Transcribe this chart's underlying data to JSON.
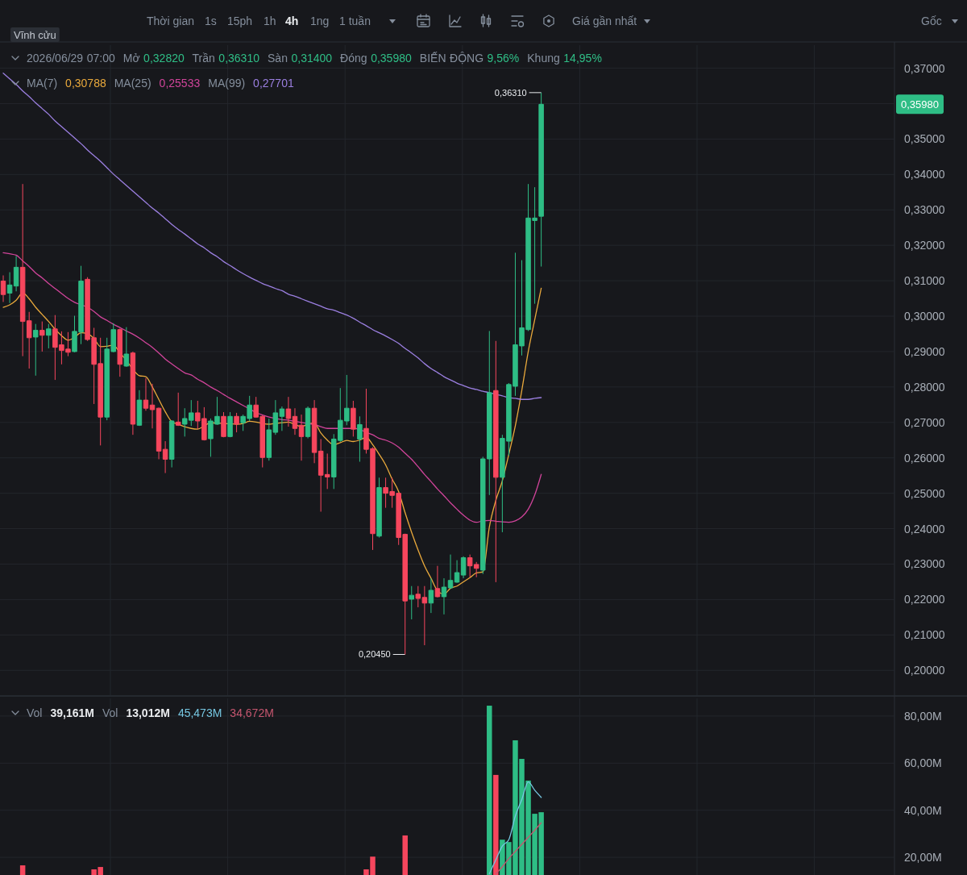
{
  "chart_data": [
    {
      "type": "candlestick",
      "title": "Vĩnh cửu",
      "subtitle": "2026/06/29 07:00 Mở 0,32820 Trần 0,36310 Sàn 0,31400 Đóng 0,35980 BIẾN ĐỘNG 9,56% Khung 14,95%",
      "categories": [
        null,
        null,
        null,
        null,
        null,
        null,
        null,
        null,
        null,
        null,
        null,
        null,
        null,
        null,
        null,
        null,
        null,
        null,
        null,
        null,
        null,
        null,
        null,
        null,
        null,
        null,
        null,
        null,
        null,
        null,
        null,
        null,
        null,
        null,
        null,
        null,
        null,
        null,
        null,
        null,
        null,
        null,
        null,
        null,
        null,
        null,
        null,
        null,
        null,
        null,
        null,
        null,
        null,
        null,
        null,
        null,
        null,
        null,
        null,
        null,
        null,
        null,
        null,
        null,
        null,
        null,
        null,
        null,
        null,
        null,
        null,
        null,
        null,
        null,
        null,
        null,
        null,
        null,
        null,
        null,
        null,
        null,
        null,
        null,
        null,
        null,
        null,
        null,
        null,
        null,
        null,
        null,
        null,
        null,
        null,
        null,
        null,
        null,
        null,
        null,
        null,
        null,
        null,
        null,
        null,
        null,
        null,
        null,
        null,
        null,
        null,
        null,
        null,
        null,
        null,
        null,
        null,
        null,
        null,
        null,
        null,
        null,
        null,
        null,
        null,
        null,
        null,
        null,
        null,
        null,
        null,
        null,
        null,
        null,
        null,
        null,
        null,
        null
      ],
      "ohlc": [
        [
          0.3099,
          0.3115,
          0.304,
          0.3061
        ],
        [
          0.3065,
          0.3124,
          0.3037,
          0.3088
        ],
        [
          0.3085,
          0.317,
          0.307,
          0.3138
        ],
        [
          0.3138,
          0.3373,
          0.2887,
          0.2985
        ],
        [
          0.2987,
          0.3012,
          0.2852,
          0.2939
        ],
        [
          0.2941,
          0.2978,
          0.2832,
          0.296
        ],
        [
          0.296,
          0.2985,
          0.29,
          0.2946
        ],
        [
          0.2946,
          0.2978,
          0.2909,
          0.2964
        ],
        [
          0.2964,
          0.3003,
          0.282,
          0.2912
        ],
        [
          0.2919,
          0.2957,
          0.2864,
          0.2903
        ],
        [
          0.2907,
          0.2955,
          0.2887,
          0.2898
        ],
        [
          0.29,
          0.3001,
          0.2898,
          0.2957
        ],
        [
          0.2955,
          0.3142,
          0.2921,
          0.3099
        ],
        [
          0.3104,
          0.311,
          0.293,
          0.2934
        ],
        [
          0.2939,
          0.2967,
          0.2752,
          0.2864
        ],
        [
          0.2866,
          0.2939,
          0.2635,
          0.2715
        ],
        [
          0.2715,
          0.2939,
          0.2706,
          0.2907
        ],
        [
          0.29,
          0.298,
          0.2898,
          0.2962
        ],
        [
          0.2962,
          0.2965,
          0.2829,
          0.2864
        ],
        [
          0.2859,
          0.2969,
          0.2857,
          0.2893
        ],
        [
          0.2896,
          0.29,
          0.2665,
          0.2695
        ],
        [
          0.2692,
          0.2791,
          0.269,
          0.2763
        ],
        [
          0.2763,
          0.2825,
          0.2733,
          0.274
        ],
        [
          0.2749,
          0.2809,
          0.2683,
          0.2736
        ],
        [
          0.274,
          0.2742,
          0.2596,
          0.2619
        ],
        [
          0.2624,
          0.2647,
          0.2557,
          0.2596
        ],
        [
          0.2596,
          0.2706,
          0.2573,
          0.2704
        ],
        [
          0.2701,
          0.2784,
          0.269,
          0.2692
        ],
        [
          0.2695,
          0.274,
          0.266,
          0.2711
        ],
        [
          0.2706,
          0.2763,
          0.269,
          0.2727
        ],
        [
          0.2727,
          0.2761,
          0.2681,
          0.2704
        ],
        [
          0.2711,
          0.2743,
          0.2649,
          0.2651
        ],
        [
          0.2654,
          0.2711,
          0.2603,
          0.2704
        ],
        [
          0.2695,
          0.2772,
          0.2693,
          0.2717
        ],
        [
          0.2717,
          0.2729,
          0.2658,
          0.266
        ],
        [
          0.266,
          0.2729,
          0.2658,
          0.2717
        ],
        [
          0.2717,
          0.2727,
          0.2672,
          0.2695
        ],
        [
          0.2699,
          0.2722,
          0.2676,
          0.2717
        ],
        [
          0.2711,
          0.2775,
          0.2704,
          0.2749
        ],
        [
          0.2749,
          0.2772,
          0.2713,
          0.2715
        ],
        [
          0.2717,
          0.272,
          0.2573,
          0.2601
        ],
        [
          0.2601,
          0.2711,
          0.2592,
          0.2679
        ],
        [
          0.2672,
          0.2763,
          0.2665,
          0.2727
        ],
        [
          0.2717,
          0.2745,
          0.2676,
          0.2738
        ],
        [
          0.2738,
          0.2772,
          0.2688,
          0.2711
        ],
        [
          0.2717,
          0.274,
          0.2665,
          0.2683
        ],
        [
          0.2692,
          0.2722,
          0.2592,
          0.266
        ],
        [
          0.266,
          0.2745,
          0.2655,
          0.274
        ],
        [
          0.274,
          0.2763,
          0.2585,
          0.2615
        ],
        [
          0.2619,
          0.2653,
          0.2448,
          0.2551
        ],
        [
          0.2553,
          0.2612,
          0.2512,
          0.2546
        ],
        [
          0.2546,
          0.2667,
          0.2512,
          0.2653
        ],
        [
          0.2649,
          0.2797,
          0.2645,
          0.2706
        ],
        [
          0.2704,
          0.2834,
          0.2692,
          0.274
        ],
        [
          0.274,
          0.2761,
          0.266,
          0.2681
        ],
        [
          0.2653,
          0.2717,
          0.2589,
          0.2694
        ],
        [
          0.2683,
          0.2795,
          0.2612,
          0.2624
        ],
        [
          0.2626,
          0.263,
          0.234,
          0.2386
        ],
        [
          0.2379,
          0.2544,
          0.2375,
          0.2516
        ],
        [
          0.2516,
          0.2544,
          0.2459,
          0.25
        ],
        [
          0.2505,
          0.2544,
          0.2459,
          0.2494
        ],
        [
          0.25,
          0.2502,
          0.2354,
          0.2375
        ],
        [
          0.2384,
          0.2386,
          0.2045,
          0.2196
        ],
        [
          0.2201,
          0.2238,
          0.2144,
          0.2212
        ],
        [
          0.2215,
          0.2238,
          0.2178,
          0.2203
        ],
        [
          0.2206,
          0.2238,
          0.2071,
          0.219
        ],
        [
          0.219,
          0.226,
          0.2162,
          0.2226
        ],
        [
          0.2231,
          0.2295,
          0.2206,
          0.2208
        ],
        [
          0.2208,
          0.226,
          0.2158,
          0.2235
        ],
        [
          0.2233,
          0.2327,
          0.223,
          0.2254
        ],
        [
          0.2249,
          0.2311,
          0.2247,
          0.2276
        ],
        [
          0.2269,
          0.2322,
          0.226,
          0.2318
        ],
        [
          0.2318,
          0.2327,
          0.2263,
          0.2295
        ],
        [
          0.2299,
          0.2306,
          0.2263,
          0.2288
        ],
        [
          0.2283,
          0.2603,
          0.2272,
          0.2597
        ],
        [
          0.2597,
          0.2958,
          0.2495,
          0.2784
        ],
        [
          0.279,
          0.293,
          0.2249,
          0.2545
        ],
        [
          0.2545,
          0.2665,
          0.239,
          0.2655
        ],
        [
          0.2647,
          0.2811,
          0.2606,
          0.2807
        ],
        [
          0.2802,
          0.3179,
          0.2775,
          0.2919
        ],
        [
          0.2916,
          0.3158,
          0.2889,
          0.2967
        ],
        [
          0.2962,
          0.3373,
          0.2958,
          0.3277
        ],
        [
          0.327,
          0.3364,
          0.3035,
          0.3277
        ],
        [
          0.3282,
          0.3631,
          0.314,
          0.3598
        ],
        null,
        null,
        null,
        null,
        null,
        null,
        null,
        null,
        null,
        null,
        null,
        null,
        null,
        null,
        null,
        null,
        null,
        null,
        null,
        null,
        null,
        null,
        null,
        null,
        null,
        null,
        null,
        null,
        null,
        null,
        null,
        null,
        null,
        null,
        null,
        null,
        null,
        null,
        null,
        null,
        null,
        null,
        null,
        null,
        null,
        null,
        null,
        null,
        null,
        null,
        null,
        null,
        null,
        null
      ],
      "colors": [
        "#f6465d",
        "#2ebd85",
        "#2ebd85",
        "#f6465d",
        "#f6465d",
        "#2ebd85",
        "#f6465d",
        "#2ebd85",
        "#f6465d",
        "#f6465d",
        "#f6465d",
        "#2ebd85",
        "#2ebd85",
        "#f6465d",
        "#f6465d",
        "#f6465d",
        "#2ebd85",
        "#2ebd85",
        "#f6465d",
        "#2ebd85",
        "#f6465d",
        "#2ebd85",
        "#f6465d",
        "#f6465d",
        "#f6465d",
        "#f6465d",
        "#2ebd85",
        "#f6465d",
        "#2ebd85",
        "#2ebd85",
        "#f6465d",
        "#f6465d",
        "#2ebd85",
        "#2ebd85",
        "#f6465d",
        "#2ebd85",
        "#f6465d",
        "#2ebd85",
        "#2ebd85",
        "#f6465d",
        "#f6465d",
        "#2ebd85",
        "#2ebd85",
        "#2ebd85",
        "#f6465d",
        "#f6465d",
        "#f6465d",
        "#2ebd85",
        "#f6465d",
        "#f6465d",
        "#f6465d",
        "#2ebd85",
        "#2ebd85",
        "#2ebd85",
        "#f6465d",
        "#2ebd85",
        "#f6465d",
        "#f6465d",
        "#2ebd85",
        "#f6465d",
        "#f6465d",
        "#f6465d",
        "#f6465d",
        "#2ebd85",
        "#f6465d",
        "#f6465d",
        "#2ebd85",
        "#f6465d",
        "#2ebd85",
        "#2ebd85",
        "#2ebd85",
        "#2ebd85",
        "#f6465d",
        "#f6465d",
        "#2ebd85",
        "#2ebd85",
        "#f6465d",
        "#2ebd85",
        "#2ebd85",
        "#2ebd85",
        "#2ebd85",
        "#2ebd85",
        "#2ebd85",
        "#2ebd85",
        null,
        null,
        null,
        null,
        null,
        null,
        null,
        null,
        null,
        null,
        null,
        null,
        null,
        null,
        null,
        null,
        null,
        null,
        null,
        null,
        null,
        null,
        null,
        null,
        null,
        null,
        null,
        null,
        null,
        null,
        null,
        null,
        null,
        null,
        null,
        null,
        null,
        null,
        null,
        null,
        null,
        null,
        null,
        null,
        null,
        null,
        null,
        null,
        null,
        null,
        null,
        null,
        null,
        null
      ],
      "series": [
        {
          "type": "line",
          "color": "#e9a93c",
          "values": [
            0.3025,
            0.3032,
            0.3045,
            0.3066,
            0.3049,
            0.3025,
            0.3005,
            0.2985,
            0.2963,
            0.2945,
            0.2932,
            0.294,
            0.2953,
            0.295,
            0.2937,
            0.2914,
            0.2915,
            0.2918,
            0.2897,
            0.2875,
            0.285,
            0.2832,
            0.2829,
            0.28,
            0.2765,
            0.273,
            0.2702,
            0.2695,
            0.2688,
            0.2683,
            0.2681,
            0.269,
            0.2699,
            0.2698,
            0.2697,
            0.2696,
            0.2695,
            0.2697,
            0.2703,
            0.2701,
            0.2697,
            0.2695,
            0.2697,
            0.2699,
            0.2701,
            0.2694,
            0.2688,
            0.2695,
            0.2698,
            0.267,
            0.265,
            0.2637,
            0.2643,
            0.2649,
            0.2646,
            0.265,
            0.2658,
            0.2637,
            0.261,
            0.258,
            0.254,
            0.2505,
            0.2445,
            0.239,
            0.234,
            0.2295,
            0.226,
            0.2225,
            0.2215,
            0.2232,
            0.2238,
            0.225,
            0.2262,
            0.2275,
            0.2278,
            0.2405,
            0.248,
            0.2535,
            0.261,
            0.269,
            0.279,
            0.29,
            0.299,
            0.30788,
            null,
            null,
            null,
            null,
            null,
            null,
            null,
            null,
            null,
            null,
            null,
            null,
            null,
            null,
            null,
            null,
            null,
            null,
            null,
            null,
            null,
            null,
            null,
            null,
            null,
            null,
            null,
            null,
            null,
            null,
            null,
            null,
            null,
            null,
            null,
            null,
            null,
            null,
            null,
            null,
            null,
            null,
            null,
            null,
            null,
            null,
            null,
            null,
            null,
            null,
            null,
            null,
            null,
            null
          ]
        },
        {
          "type": "line",
          "color": "#d0449a",
          "values": [
            0.3179,
            0.3176,
            0.3172,
            0.3156,
            0.314,
            0.3122,
            0.3108,
            0.3092,
            0.3078,
            0.3064,
            0.305,
            0.3039,
            0.3032,
            0.3025,
            0.3013,
            0.2998,
            0.2988,
            0.2977,
            0.2968,
            0.2958,
            0.2949,
            0.2938,
            0.2925,
            0.2912,
            0.2896,
            0.2879,
            0.2865,
            0.2852,
            0.284,
            0.2834,
            0.2822,
            0.2812,
            0.28,
            0.279,
            0.2779,
            0.2768,
            0.2758,
            0.2748,
            0.2738,
            0.2728,
            0.2721,
            0.2715,
            0.2711,
            0.2708,
            0.2706,
            0.2703,
            0.27,
            0.2697,
            0.2694,
            0.2688,
            0.2683,
            0.2683,
            0.2683,
            0.2683,
            0.2683,
            0.268,
            0.2672,
            0.2665,
            0.2655,
            0.265,
            0.2642,
            0.263,
            0.2613,
            0.2596,
            0.2575,
            0.2553,
            0.2533,
            0.2512,
            0.2493,
            0.2473,
            0.2455,
            0.2438,
            0.2424,
            0.2418,
            0.2422,
            0.2423,
            0.2421,
            0.2419,
            0.2418,
            0.2422,
            0.2433,
            0.2455,
            0.2495,
            0.25533,
            null,
            null,
            null,
            null,
            null,
            null,
            null,
            null,
            null,
            null,
            null,
            null,
            null,
            null,
            null,
            null,
            null,
            null,
            null,
            null,
            null,
            null,
            null,
            null,
            null,
            null,
            null,
            null,
            null,
            null,
            null,
            null,
            null,
            null,
            null,
            null,
            null,
            null,
            null,
            null,
            null,
            null,
            null,
            null,
            null,
            null,
            null,
            null,
            null,
            null,
            null,
            null,
            null,
            null
          ]
        },
        {
          "type": "line",
          "color": "#9b7fe0",
          "values": [
            0.3686,
            0.367,
            0.3654,
            0.3636,
            0.362,
            0.3602,
            0.3586,
            0.357,
            0.3551,
            0.3535,
            0.3519,
            0.3503,
            0.3487,
            0.3469,
            0.3453,
            0.3437,
            0.3419,
            0.3401,
            0.3385,
            0.3369,
            0.3353,
            0.3337,
            0.3321,
            0.3305,
            0.3291,
            0.3275,
            0.3259,
            0.3245,
            0.3232,
            0.3218,
            0.3204,
            0.3193,
            0.3179,
            0.3168,
            0.3154,
            0.3143,
            0.3131,
            0.312,
            0.311,
            0.3101,
            0.3092,
            0.3085,
            0.3078,
            0.3072,
            0.3062,
            0.3056,
            0.3049,
            0.3042,
            0.3035,
            0.3028,
            0.3021,
            0.3017,
            0.301,
            0.3003,
            0.2994,
            0.2983,
            0.2973,
            0.2962,
            0.2953,
            0.2944,
            0.2934,
            0.2923,
            0.2909,
            0.2896,
            0.2882,
            0.2866,
            0.2852,
            0.2841,
            0.2829,
            0.282,
            0.2811,
            0.2804,
            0.2797,
            0.2793,
            0.2788,
            0.2784,
            0.2779,
            0.2775,
            0.277,
            0.2768,
            0.2765,
            0.2765,
            0.2768,
            0.27701,
            null,
            null,
            null,
            null,
            null,
            null,
            null,
            null,
            null,
            null,
            null,
            null,
            null,
            null,
            null,
            null,
            null,
            null,
            null,
            null,
            null,
            null,
            null,
            null,
            null,
            null,
            null,
            null,
            null,
            null,
            null,
            null,
            null,
            null,
            null,
            null,
            null,
            null,
            null,
            null,
            null,
            null,
            null,
            null,
            null,
            null,
            null,
            null,
            null,
            null,
            null,
            null,
            null,
            null
          ]
        }
      ],
      "ylim": [
        0.193,
        0.3765
      ],
      "yticks": [
        {
          "value": 0.2,
          "label": "0,20000"
        },
        {
          "value": 0.21,
          "label": "0,21000"
        },
        {
          "value": 0.22,
          "label": "0,22000"
        },
        {
          "value": 0.23,
          "label": "0,23000"
        },
        {
          "value": 0.24,
          "label": "0,24000"
        },
        {
          "value": 0.25,
          "label": "0,25000"
        },
        {
          "value": 0.26,
          "label": "0,26000"
        },
        {
          "value": 0.27,
          "label": "0,27000"
        },
        {
          "value": 0.28,
          "label": "0,28000"
        },
        {
          "value": 0.29,
          "label": "0,29000"
        },
        {
          "value": 0.3,
          "label": "0,30000"
        },
        {
          "value": 0.31,
          "label": "0,31000"
        },
        {
          "value": 0.32,
          "label": "0,32000"
        },
        {
          "value": 0.33,
          "label": "0,33000"
        },
        {
          "value": 0.34,
          "label": "0,34000"
        },
        {
          "value": 0.35,
          "label": "0,35000"
        },
        {
          "value": 0.36,
          "label": null
        },
        {
          "value": 0.37,
          "label": "0,37000"
        }
      ],
      "grid": true,
      "tick_labels": "y",
      "annotations": [
        "Thời gian",
        "1s",
        "15ph",
        "1h",
        "4h",
        "1ng",
        "1 tuần",
        "Giá gần nhất",
        "Gốc",
        "MA(7)",
        "0,30788",
        "MA(25)",
        "0,25533",
        "MA(99)",
        "0,27701",
        "0,36310",
        "0,20450",
        "0,35980"
      ]
    },
    {
      "type": "bar",
      "categories": [
        null,
        null,
        null,
        null,
        null,
        null,
        null,
        null,
        null,
        null,
        null,
        null,
        null,
        null,
        null,
        null,
        null,
        null,
        null,
        null,
        null,
        null,
        null,
        null,
        null,
        null,
        null,
        null,
        null,
        null,
        null,
        null,
        null,
        null,
        null,
        null,
        null,
        null,
        null,
        null,
        null,
        null,
        null,
        null,
        null,
        null,
        null,
        null,
        null,
        null,
        null,
        null,
        null,
        null,
        null,
        null,
        null,
        null,
        null,
        null,
        null,
        null,
        null,
        null,
        null,
        null,
        null,
        null,
        null,
        null,
        null,
        null,
        null,
        null,
        null,
        null,
        null,
        null,
        null,
        null,
        null,
        null,
        null,
        null,
        null,
        null,
        null,
        null,
        null,
        null,
        null,
        null,
        null,
        null,
        null,
        null,
        null,
        null,
        null,
        null,
        null,
        null,
        null,
        null,
        null,
        null,
        null,
        null,
        null,
        null,
        null,
        null,
        null,
        null,
        null,
        null,
        null,
        null,
        null,
        null,
        null,
        null,
        null,
        null,
        null,
        null,
        null,
        null,
        null,
        null,
        null,
        null,
        null,
        null,
        null,
        null,
        null,
        null
      ],
      "series": [
        {
          "type": "bar",
          "values": [
            null,
            null,
            null,
            16.6,
            null,
            null,
            null,
            null,
            null,
            null,
            null,
            null,
            null,
            null,
            14.9,
            15.9,
            null,
            null,
            null,
            null,
            null,
            null,
            null,
            null,
            null,
            null,
            null,
            null,
            null,
            null,
            null,
            null,
            null,
            null,
            null,
            null,
            null,
            null,
            null,
            null,
            null,
            null,
            null,
            null,
            null,
            null,
            null,
            null,
            null,
            null,
            null,
            null,
            null,
            null,
            null,
            null,
            14.9,
            20.3,
            null,
            null,
            null,
            null,
            29.3,
            null,
            null,
            null,
            null,
            null,
            null,
            null,
            null,
            null,
            null,
            null,
            null,
            84.4,
            55.0,
            27.5,
            26.5,
            69.7,
            61.8,
            52.6,
            38.5,
            39.161,
            null,
            null,
            null,
            null,
            null,
            null,
            null,
            null,
            null,
            null,
            null,
            null,
            null,
            null,
            null,
            null,
            null,
            null,
            null,
            null,
            null,
            null,
            null,
            null,
            null,
            null,
            null,
            null,
            null,
            null,
            null,
            null,
            null,
            null,
            null,
            null,
            null,
            null,
            null,
            null,
            null,
            null,
            null,
            null,
            null,
            null,
            null,
            null,
            null,
            null,
            null,
            null,
            null,
            null
          ],
          "colors": [
            null,
            null,
            null,
            "#f6465d",
            null,
            null,
            null,
            null,
            null,
            null,
            null,
            null,
            null,
            null,
            "#f6465d",
            "#f6465d",
            null,
            null,
            null,
            null,
            null,
            null,
            null,
            null,
            null,
            null,
            null,
            null,
            null,
            null,
            null,
            null,
            null,
            null,
            null,
            null,
            null,
            null,
            null,
            null,
            null,
            null,
            null,
            null,
            null,
            null,
            null,
            null,
            null,
            null,
            null,
            null,
            null,
            null,
            null,
            null,
            "#f6465d",
            "#f6465d",
            null,
            null,
            null,
            null,
            "#f6465d",
            null,
            null,
            null,
            null,
            null,
            null,
            null,
            null,
            null,
            null,
            null,
            null,
            "#2ebd85",
            "#f6465d",
            "#2ebd85",
            "#2ebd85",
            "#2ebd85",
            "#2ebd85",
            "#2ebd85",
            "#2ebd85",
            "#2ebd85",
            null,
            null,
            null,
            null,
            null,
            null,
            null,
            null,
            null,
            null,
            null,
            null,
            null,
            null,
            null,
            null,
            null,
            null,
            null,
            null,
            null,
            null,
            null,
            null,
            null,
            null,
            null,
            null,
            null,
            null,
            null,
            null,
            null,
            null,
            null,
            null,
            null,
            null,
            null,
            null,
            null,
            null,
            null,
            null,
            null,
            null,
            null,
            null,
            null,
            null,
            null,
            null,
            null,
            null
          ]
        },
        {
          "type": "line",
          "color": "#76c7e2",
          "values": [
            null,
            null,
            null,
            null,
            null,
            null,
            null,
            null,
            null,
            null,
            null,
            null,
            null,
            null,
            null,
            null,
            null,
            null,
            null,
            null,
            null,
            null,
            null,
            null,
            null,
            null,
            null,
            null,
            null,
            null,
            null,
            null,
            null,
            null,
            null,
            null,
            null,
            null,
            null,
            null,
            null,
            null,
            null,
            null,
            null,
            null,
            null,
            null,
            null,
            null,
            null,
            null,
            null,
            null,
            null,
            null,
            null,
            null,
            null,
            null,
            null,
            null,
            null,
            null,
            null,
            null,
            null,
            null,
            null,
            null,
            null,
            null,
            null,
            null,
            null,
            13.0,
            19.0,
            24.8,
            27.5,
            37.5,
            44.5,
            52.0,
            48.5,
            45.473,
            null,
            null,
            null,
            null,
            null,
            null,
            null,
            null,
            null,
            null,
            null,
            null,
            null,
            null,
            null,
            null,
            null,
            null,
            null,
            null,
            null,
            null,
            null,
            null,
            null,
            null,
            null,
            null,
            null,
            null,
            null,
            null,
            null,
            null,
            null,
            null,
            null,
            null,
            null,
            null,
            null,
            null,
            null,
            null,
            null,
            null,
            null,
            null,
            null,
            null,
            null,
            null,
            null,
            null
          ]
        },
        {
          "type": "line",
          "color": "#c6566f",
          "values": [
            null,
            null,
            null,
            null,
            null,
            null,
            null,
            null,
            null,
            null,
            null,
            null,
            null,
            null,
            null,
            null,
            null,
            null,
            null,
            null,
            null,
            null,
            null,
            null,
            null,
            null,
            null,
            null,
            null,
            null,
            null,
            null,
            null,
            null,
            null,
            null,
            null,
            null,
            null,
            null,
            null,
            null,
            null,
            null,
            null,
            null,
            null,
            null,
            null,
            null,
            null,
            null,
            null,
            null,
            null,
            null,
            null,
            null,
            null,
            null,
            null,
            null,
            null,
            null,
            null,
            null,
            null,
            null,
            null,
            null,
            null,
            null,
            null,
            null,
            null,
            null,
            13.0,
            16.0,
            19.5,
            22.5,
            25.5,
            28.5,
            31.5,
            34.672,
            null,
            null,
            null,
            null,
            null,
            null,
            null,
            null,
            null,
            null,
            null,
            null,
            null,
            null,
            null,
            null,
            null,
            null,
            null,
            null,
            null,
            null,
            null,
            null,
            null,
            null,
            null,
            null,
            null,
            null,
            null,
            null,
            null,
            null,
            null,
            null,
            null,
            null,
            null,
            null,
            null,
            null,
            null,
            null,
            null,
            null,
            null,
            null,
            null,
            null,
            null,
            null,
            null,
            null
          ]
        }
      ],
      "ylim": [
        12.5,
        87.5
      ],
      "yticks": [
        {
          "value": 20,
          "label": "20,00M"
        },
        {
          "value": 40,
          "label": "40,00M"
        },
        {
          "value": 60,
          "label": "60,00M"
        },
        {
          "value": 80,
          "label": "80,00M"
        }
      ],
      "grid": true,
      "tick_labels": "y",
      "annotations": [
        "Vol",
        "39,161M",
        "Vol",
        "13,012M",
        "45,473M",
        "34,672M"
      ]
    }
  ]
}
